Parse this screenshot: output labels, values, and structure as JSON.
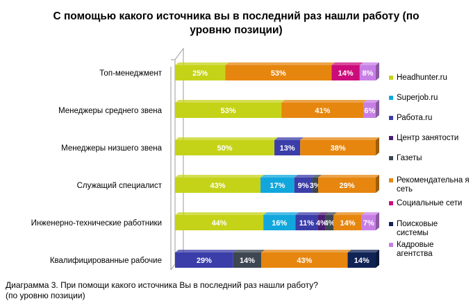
{
  "title": "С помощью какого  источника вы в последний раз нашли работу (по уровню позиции)",
  "caption_line1": "Диаграмма 3. При помощи какого источника Вы в последний раз нашли работу?",
  "caption_line2": "(по уровню позиции)",
  "chart_data": {
    "type": "bar",
    "orientation": "horizontal",
    "stacked": true,
    "percent": true,
    "categories": [
      "Топ-менеджмент",
      "Менеджеры   среднего   звена",
      "Менеджеры  низшего звена",
      "Служащий  специалист",
      "Инженерно-технические  работники",
      "Квалифицированные рабочие"
    ],
    "series": [
      {
        "name": "Headhunter.ru",
        "color": "#c5d318",
        "values": [
          25,
          53,
          50,
          43,
          44,
          0
        ]
      },
      {
        "name": "Superjob.ru",
        "color": "#11a7dc",
        "values": [
          0,
          0,
          0,
          17,
          16,
          0
        ]
      },
      {
        "name": "Работа.ru",
        "color": "#3b3da9",
        "values": [
          0,
          0,
          13,
          9,
          11,
          29
        ]
      },
      {
        "name": "Центр занятости",
        "color": "#4a1c72",
        "values": [
          0,
          0,
          0,
          0,
          4,
          0
        ]
      },
      {
        "name": "Газеты",
        "color": "#3d4752",
        "values": [
          0,
          0,
          0,
          3,
          4,
          14
        ]
      },
      {
        "name": "Рекомендательная сеть",
        "color": "#e6860e",
        "values": [
          53,
          41,
          38,
          29,
          14,
          43
        ]
      },
      {
        "name": "Социальные сети",
        "color": "#cc0c7a",
        "values": [
          14,
          0,
          0,
          0,
          0,
          0
        ]
      },
      {
        "name": "Поисковые системы",
        "color": "#0f2354",
        "values": [
          0,
          0,
          0,
          0,
          0,
          14
        ]
      },
      {
        "name": "Кадровые агентства",
        "color": "#c77fe6",
        "values": [
          8,
          6,
          0,
          0,
          7,
          0
        ]
      }
    ],
    "legend_labels": [
      "Headhunter.ru",
      "Superjob.ru",
      "Работа.ru",
      "Центр занятости",
      "Газеты",
      "Рекомендательна я сеть",
      "Социальные сети",
      "Поисковые системы",
      "Кадровые агентства"
    ],
    "legend_position": "right",
    "grid": false
  }
}
